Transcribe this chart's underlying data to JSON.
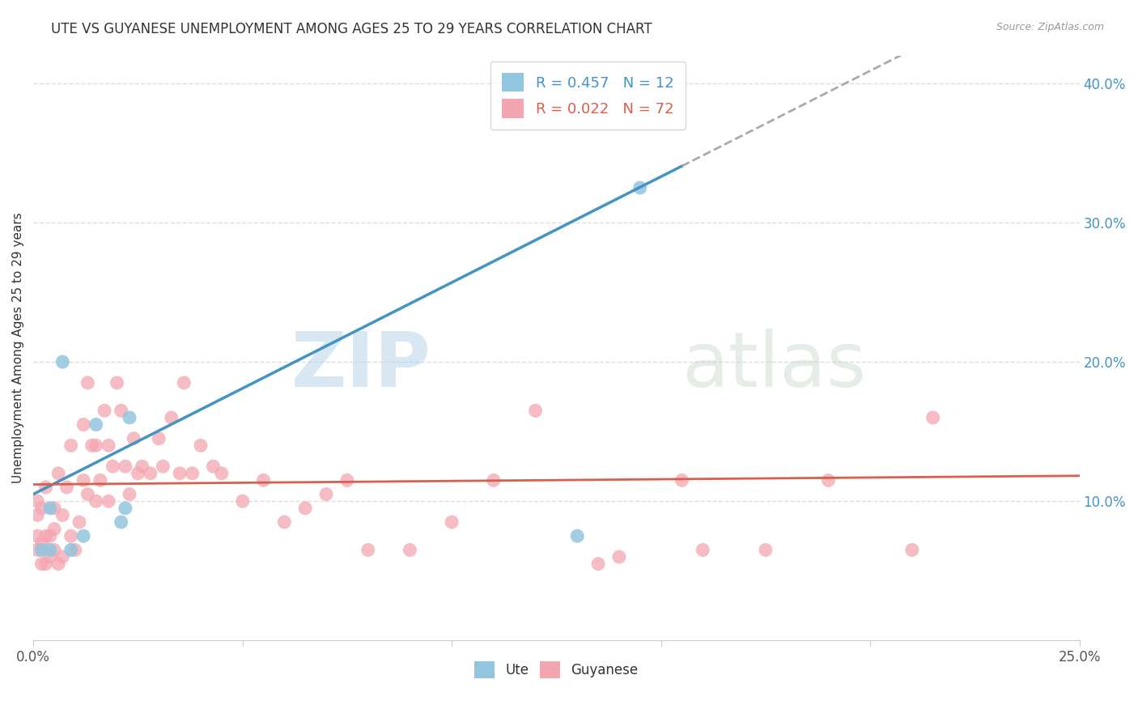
{
  "title": "UTE VS GUYANESE UNEMPLOYMENT AMONG AGES 25 TO 29 YEARS CORRELATION CHART",
  "source": "Source: ZipAtlas.com",
  "ylabel": "Unemployment Among Ages 25 to 29 years",
  "xlim": [
    0.0,
    0.25
  ],
  "ylim": [
    0.0,
    0.42
  ],
  "xticks": [
    0.0,
    0.05,
    0.1,
    0.15,
    0.2,
    0.25
  ],
  "xticklabels": [
    "0.0%",
    "",
    "",
    "",
    "",
    "25.0%"
  ],
  "yticks_right": [
    0.0,
    0.1,
    0.2,
    0.3,
    0.4
  ],
  "yticklabels_right": [
    "",
    "10.0%",
    "20.0%",
    "30.0%",
    "40.0%"
  ],
  "legend_r1": "R = 0.457",
  "legend_n1": "N = 12",
  "legend_r2": "R = 0.022",
  "legend_n2": "N = 72",
  "blue_color": "#92c5de",
  "pink_color": "#f4a6b0",
  "blue_line_color": "#4393c3",
  "pink_line_color": "#d6604d",
  "watermark_zip": "ZIP",
  "watermark_atlas": "atlas",
  "blue_line_slope": 1.52,
  "blue_line_intercept": 0.105,
  "blue_line_solid_end": 0.155,
  "blue_line_dash_end": 0.25,
  "pink_line_slope": 0.025,
  "pink_line_intercept": 0.112,
  "ute_x": [
    0.002,
    0.004,
    0.004,
    0.007,
    0.009,
    0.012,
    0.015,
    0.021,
    0.022,
    0.023,
    0.13,
    0.145
  ],
  "ute_y": [
    0.065,
    0.065,
    0.095,
    0.2,
    0.065,
    0.075,
    0.155,
    0.085,
    0.095,
    0.16,
    0.075,
    0.325
  ],
  "guyanese_x": [
    0.001,
    0.001,
    0.001,
    0.001,
    0.002,
    0.002,
    0.002,
    0.003,
    0.003,
    0.003,
    0.004,
    0.004,
    0.005,
    0.005,
    0.005,
    0.006,
    0.006,
    0.007,
    0.007,
    0.008,
    0.009,
    0.009,
    0.01,
    0.011,
    0.012,
    0.012,
    0.013,
    0.013,
    0.014,
    0.015,
    0.015,
    0.016,
    0.017,
    0.018,
    0.018,
    0.019,
    0.02,
    0.021,
    0.022,
    0.023,
    0.024,
    0.025,
    0.026,
    0.028,
    0.03,
    0.031,
    0.033,
    0.035,
    0.036,
    0.038,
    0.04,
    0.043,
    0.045,
    0.05,
    0.055,
    0.06,
    0.065,
    0.07,
    0.075,
    0.08,
    0.09,
    0.1,
    0.11,
    0.12,
    0.135,
    0.14,
    0.155,
    0.16,
    0.175,
    0.19,
    0.21,
    0.215
  ],
  "guyanese_y": [
    0.065,
    0.075,
    0.09,
    0.1,
    0.055,
    0.07,
    0.095,
    0.055,
    0.075,
    0.11,
    0.06,
    0.075,
    0.065,
    0.08,
    0.095,
    0.055,
    0.12,
    0.06,
    0.09,
    0.11,
    0.075,
    0.14,
    0.065,
    0.085,
    0.115,
    0.155,
    0.105,
    0.185,
    0.14,
    0.1,
    0.14,
    0.115,
    0.165,
    0.1,
    0.14,
    0.125,
    0.185,
    0.165,
    0.125,
    0.105,
    0.145,
    0.12,
    0.125,
    0.12,
    0.145,
    0.125,
    0.16,
    0.12,
    0.185,
    0.12,
    0.14,
    0.125,
    0.12,
    0.1,
    0.115,
    0.085,
    0.095,
    0.105,
    0.115,
    0.065,
    0.065,
    0.085,
    0.115,
    0.165,
    0.055,
    0.06,
    0.115,
    0.065,
    0.065,
    0.115,
    0.065,
    0.16
  ],
  "background_color": "#ffffff",
  "grid_color": "#dddddd"
}
